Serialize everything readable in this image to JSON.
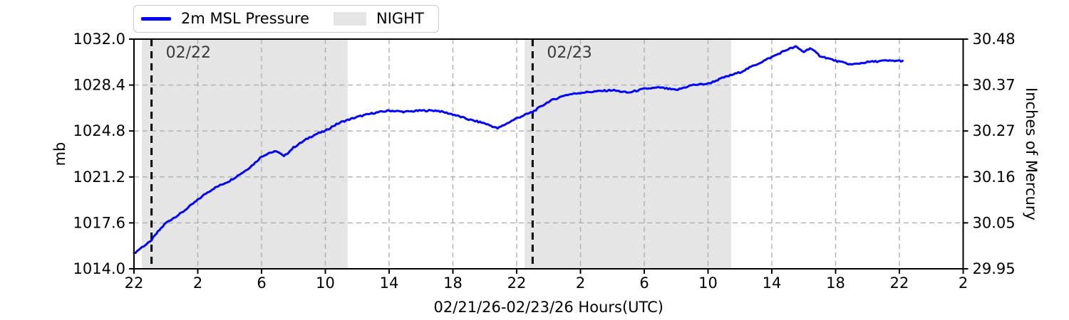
{
  "colors": {
    "line": "#0000ff",
    "night": "#e5e5e5",
    "grid": "#b0b0b0",
    "spine": "#000000",
    "date_line": "#000000",
    "date_label": "#3a3a3a",
    "text": "#000000",
    "legend_border": "#cbcbcb",
    "background": "#ffffff"
  },
  "chart_data": {
    "type": "line",
    "title": "",
    "xlabel": "02/21/26-02/23/26  Hours(UTC)",
    "ylabel": "mb",
    "ylabel_right": "Inches of Mercury",
    "ylim": [
      1014.0,
      1032.0
    ],
    "x_hours_span": 52,
    "grid": true,
    "legend_position": "top-left",
    "legend_entries": [
      {
        "label": "2m MSL Pressure",
        "swatch": "line",
        "color": "#0000ff"
      },
      {
        "label": "NIGHT",
        "swatch": "patch",
        "color": "#e5e5e5"
      }
    ],
    "x_ticks": [
      {
        "t": 0,
        "label": "22"
      },
      {
        "t": 4,
        "label": "2"
      },
      {
        "t": 8,
        "label": "6"
      },
      {
        "t": 12,
        "label": "10"
      },
      {
        "t": 16,
        "label": "14"
      },
      {
        "t": 20,
        "label": "18"
      },
      {
        "t": 24,
        "label": "22"
      },
      {
        "t": 28,
        "label": "2"
      },
      {
        "t": 32,
        "label": "6"
      },
      {
        "t": 36,
        "label": "10"
      },
      {
        "t": 40,
        "label": "14"
      },
      {
        "t": 44,
        "label": "18"
      },
      {
        "t": 48,
        "label": "22"
      },
      {
        "t": 52,
        "label": "2"
      }
    ],
    "y_ticks_left": [
      {
        "v": 1014.0,
        "label": "1014.0"
      },
      {
        "v": 1017.6,
        "label": "1017.6"
      },
      {
        "v": 1021.2,
        "label": "1021.2"
      },
      {
        "v": 1024.8,
        "label": "1024.8"
      },
      {
        "v": 1028.4,
        "label": "1028.4"
      },
      {
        "v": 1032.0,
        "label": "1032.0"
      }
    ],
    "y_ticks_right": [
      {
        "v": 1014.0,
        "label": "29.95"
      },
      {
        "v": 1017.6,
        "label": "30.05"
      },
      {
        "v": 1021.2,
        "label": "30.16"
      },
      {
        "v": 1024.8,
        "label": "30.27"
      },
      {
        "v": 1028.4,
        "label": "30.37"
      },
      {
        "v": 1032.0,
        "label": "30.48"
      }
    ],
    "night_regions": [
      [
        0.5,
        13.4
      ],
      [
        24.5,
        37.45
      ]
    ],
    "date_lines": [
      {
        "t": 1.1,
        "label": "02/22"
      },
      {
        "t": 25.0,
        "label": "02/23"
      }
    ],
    "series": [
      {
        "name": "2m MSL Pressure",
        "color": "#0000ff",
        "points": [
          [
            0,
            1015.2
          ],
          [
            0.5,
            1015.7
          ],
          [
            1,
            1016.1
          ],
          [
            1.5,
            1016.9
          ],
          [
            2,
            1017.6
          ],
          [
            2.5,
            1018.0
          ],
          [
            3,
            1018.4
          ],
          [
            3.5,
            1018.9
          ],
          [
            4,
            1019.4
          ],
          [
            4.5,
            1019.9
          ],
          [
            5,
            1020.3
          ],
          [
            5.5,
            1020.6
          ],
          [
            6,
            1020.9
          ],
          [
            6.5,
            1021.3
          ],
          [
            7,
            1021.7
          ],
          [
            7.5,
            1022.2
          ],
          [
            8,
            1022.8
          ],
          [
            8.5,
            1023.1
          ],
          [
            9,
            1023.2
          ],
          [
            9.4,
            1022.8
          ],
          [
            10,
            1023.5
          ],
          [
            10.5,
            1023.9
          ],
          [
            11,
            1024.3
          ],
          [
            11.5,
            1024.6
          ],
          [
            12,
            1024.8
          ],
          [
            12.5,
            1025.2
          ],
          [
            13,
            1025.5
          ],
          [
            13.5,
            1025.7
          ],
          [
            14,
            1025.9
          ],
          [
            15,
            1026.2
          ],
          [
            16,
            1026.4
          ],
          [
            17,
            1026.3
          ],
          [
            18,
            1026.4
          ],
          [
            19,
            1026.4
          ],
          [
            20,
            1026.1
          ],
          [
            21,
            1025.7
          ],
          [
            22,
            1025.4
          ],
          [
            22.8,
            1025.0
          ],
          [
            23.4,
            1025.4
          ],
          [
            24,
            1025.8
          ],
          [
            25,
            1026.3
          ],
          [
            26,
            1027.1
          ],
          [
            27,
            1027.6
          ],
          [
            28,
            1027.8
          ],
          [
            29,
            1027.9
          ],
          [
            30,
            1028.0
          ],
          [
            31,
            1027.8
          ],
          [
            32,
            1028.1
          ],
          [
            33,
            1028.2
          ],
          [
            34,
            1028.0
          ],
          [
            35,
            1028.4
          ],
          [
            36,
            1028.5
          ],
          [
            37,
            1029.0
          ],
          [
            38,
            1029.4
          ],
          [
            39,
            1030.0
          ],
          [
            40,
            1030.6
          ],
          [
            41,
            1031.2
          ],
          [
            41.5,
            1031.4
          ],
          [
            42,
            1031.0
          ],
          [
            42.4,
            1031.3
          ],
          [
            43,
            1030.7
          ],
          [
            44,
            1030.3
          ],
          [
            45,
            1030.0
          ],
          [
            46,
            1030.2
          ],
          [
            47,
            1030.3
          ],
          [
            48,
            1030.3
          ],
          [
            48.2,
            1030.3
          ]
        ]
      }
    ]
  }
}
